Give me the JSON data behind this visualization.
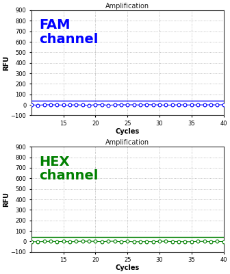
{
  "title": "Amplification",
  "xlabel": "Cycles",
  "ylabel": "RFU",
  "xlim": [
    10,
    40
  ],
  "ylim": [
    -100,
    900
  ],
  "yticks": [
    -100,
    0,
    100,
    200,
    300,
    400,
    500,
    600,
    700,
    800,
    900
  ],
  "xticks": [
    15,
    20,
    25,
    30,
    35,
    40
  ],
  "fam_label": "FAM\nchannel",
  "fam_color": "#0000ff",
  "hex_label": "HEX\nchannel",
  "hex_color": "#008000",
  "threshold_y": 40,
  "scatter_y": 0,
  "num_points": 31,
  "x_start": 10,
  "x_end": 40,
  "background_color": "#ffffff",
  "grid_color": "#aaaaaa",
  "title_fontsize": 7,
  "axis_label_fontsize": 7,
  "tick_fontsize": 6,
  "channel_label_fontsize": 14
}
